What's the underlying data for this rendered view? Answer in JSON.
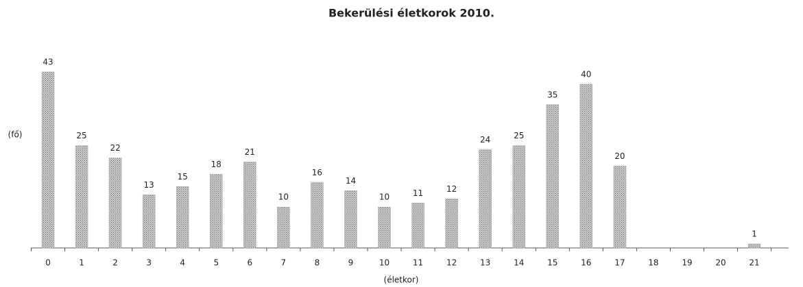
{
  "chart_data": {
    "type": "bar",
    "title": "Bekerülési életkorok 2010.",
    "y_label": "(fő)",
    "x_label": "(életkor)",
    "categories": [
      "0",
      "1",
      "2",
      "3",
      "4",
      "5",
      "6",
      "7",
      "8",
      "9",
      "10",
      "11",
      "12",
      "13",
      "14",
      "15",
      "16",
      "17",
      "18",
      "19",
      "20",
      "21"
    ],
    "values": [
      43,
      25,
      22,
      13,
      15,
      18,
      21,
      10,
      16,
      14,
      10,
      11,
      12,
      24,
      25,
      35,
      40,
      20,
      null,
      null,
      null,
      1
    ],
    "color": "#a8a8a8",
    "ylim": [
      0,
      43
    ],
    "grid": false
  }
}
